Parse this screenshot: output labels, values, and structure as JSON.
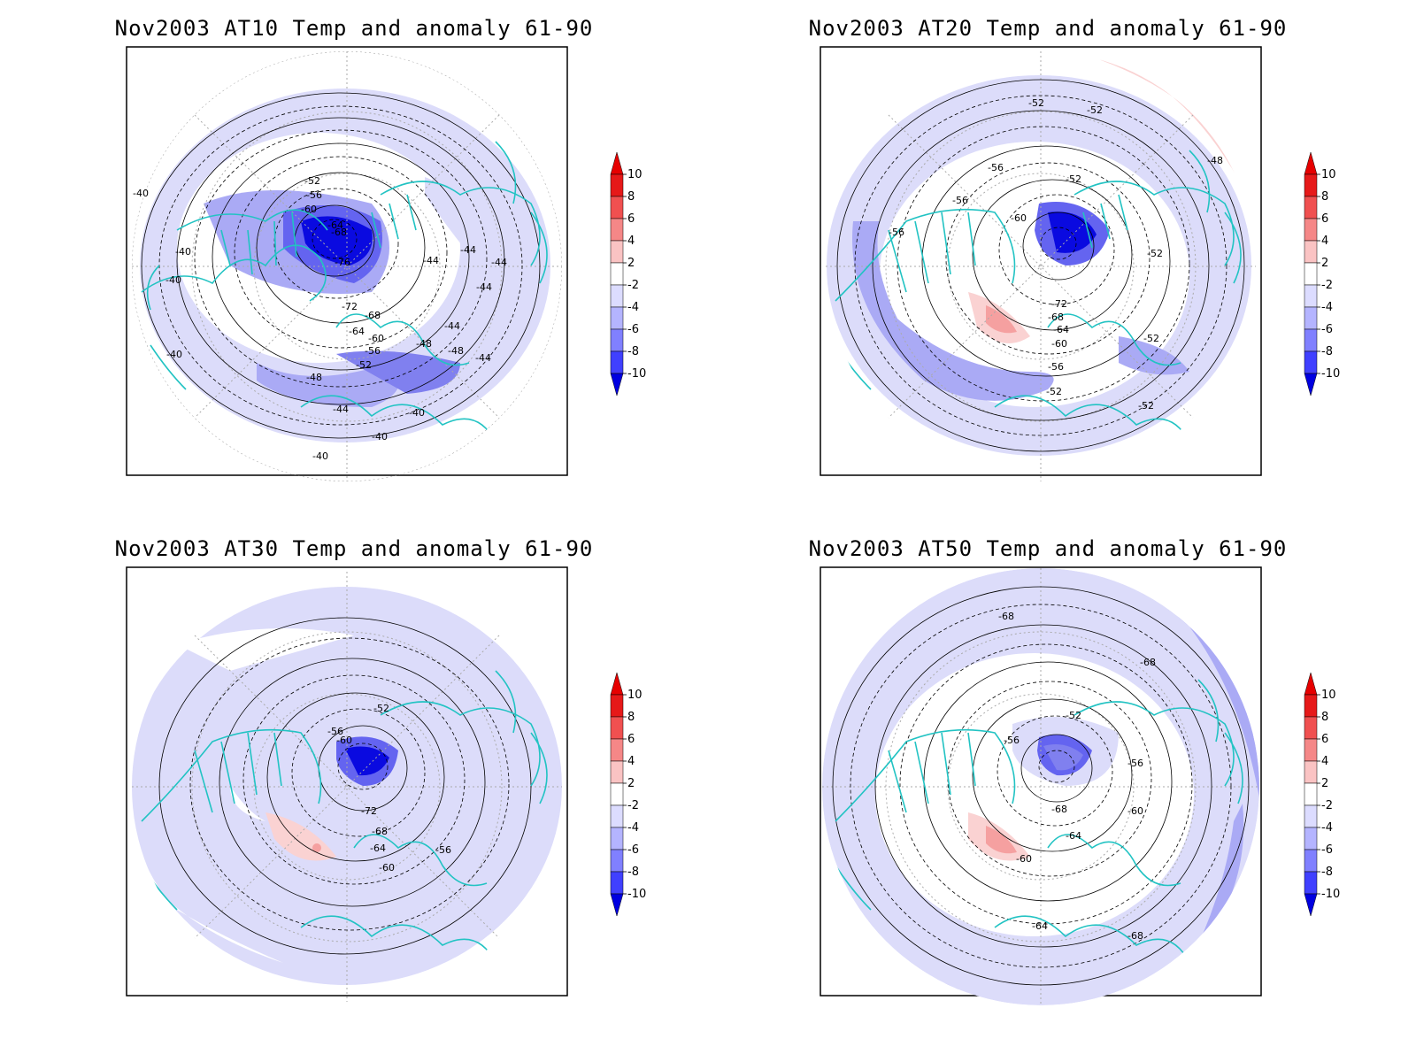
{
  "colorbar": {
    "levels": [
      "10",
      "8",
      "6",
      "4",
      "2",
      "-2",
      "-4",
      "-6",
      "-8",
      "-10"
    ],
    "colors": [
      "#e61919",
      "#f05050",
      "#f58787",
      "#fac3c3",
      "#ffffff",
      "#dcdcff",
      "#b4b4ff",
      "#8080ff",
      "#4040ff",
      "#0000e6"
    ],
    "top_color": "#e60000",
    "bottom_color": "#0000e0"
  },
  "anomaly_colors": {
    "light_blue": "#dcdcfa",
    "mid_blue": "#aaaaf5",
    "deep_blue": "#6464f0",
    "darkest_blue": "#0a0ae0",
    "light_red": "#fad2d2",
    "mid_red": "#f5a0a0",
    "coast": "#22c3c3"
  },
  "panels": [
    {
      "title": "Nov2003 AT10 Temp and anomaly 61-90",
      "contour_labels": [
        "-40",
        "-40",
        "-40",
        "-40",
        "-40",
        "-40",
        "-40",
        "-44",
        "-44",
        "-44",
        "-44",
        "-44",
        "-44",
        "-44",
        "-48",
        "-48",
        "-48",
        "-52",
        "-52",
        "-56",
        "-56",
        "-60",
        "-60",
        "-64",
        "-64",
        "-68",
        "-68",
        "-72",
        "-76"
      ]
    },
    {
      "title": "Nov2003 AT20 Temp and anomaly 61-90",
      "contour_labels": [
        "-52",
        "-52",
        "-52",
        "-52",
        "-52",
        "-52",
        "-52",
        "-48",
        "-56",
        "-56",
        "-56",
        "-56",
        "-60",
        "-60",
        "-64",
        "-68",
        "-72"
      ]
    },
    {
      "title": "Nov2003 AT30 Temp and anomaly 61-90",
      "contour_labels": [
        "-52",
        "-56",
        "-56",
        "-60",
        "-60",
        "-64",
        "-68",
        "-72"
      ]
    },
    {
      "title": "Nov2003 AT50 Temp and anomaly 61-90",
      "contour_labels": [
        "-68",
        "-68",
        "-68",
        "-52",
        "-56",
        "-56",
        "-60",
        "-60",
        "-64",
        "-64",
        "-68"
      ]
    }
  ]
}
